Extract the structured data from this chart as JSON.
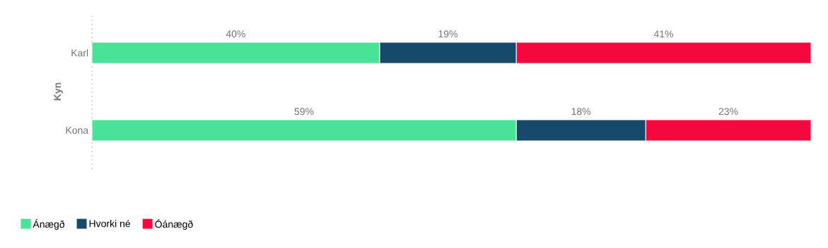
{
  "chart_data": {
    "type": "bar",
    "orientation": "horizontal",
    "stacked": true,
    "ylabel": "Kyn",
    "categories": [
      "Karl",
      "Kona"
    ],
    "xlim": [
      0,
      100
    ],
    "series": [
      {
        "name": "Ánægð",
        "color": "#48e298",
        "values": [
          40,
          59
        ],
        "value_labels": [
          "40%",
          "59%"
        ]
      },
      {
        "name": "Hvorki né",
        "color": "#174a6a",
        "values": [
          19,
          18
        ],
        "value_labels": [
          "19%",
          "18%"
        ]
      },
      {
        "name": "Óánægð",
        "color": "#f5083e",
        "values": [
          41,
          23
        ],
        "value_labels": [
          "41%",
          "23%"
        ]
      }
    ],
    "legend": "bottom left"
  }
}
